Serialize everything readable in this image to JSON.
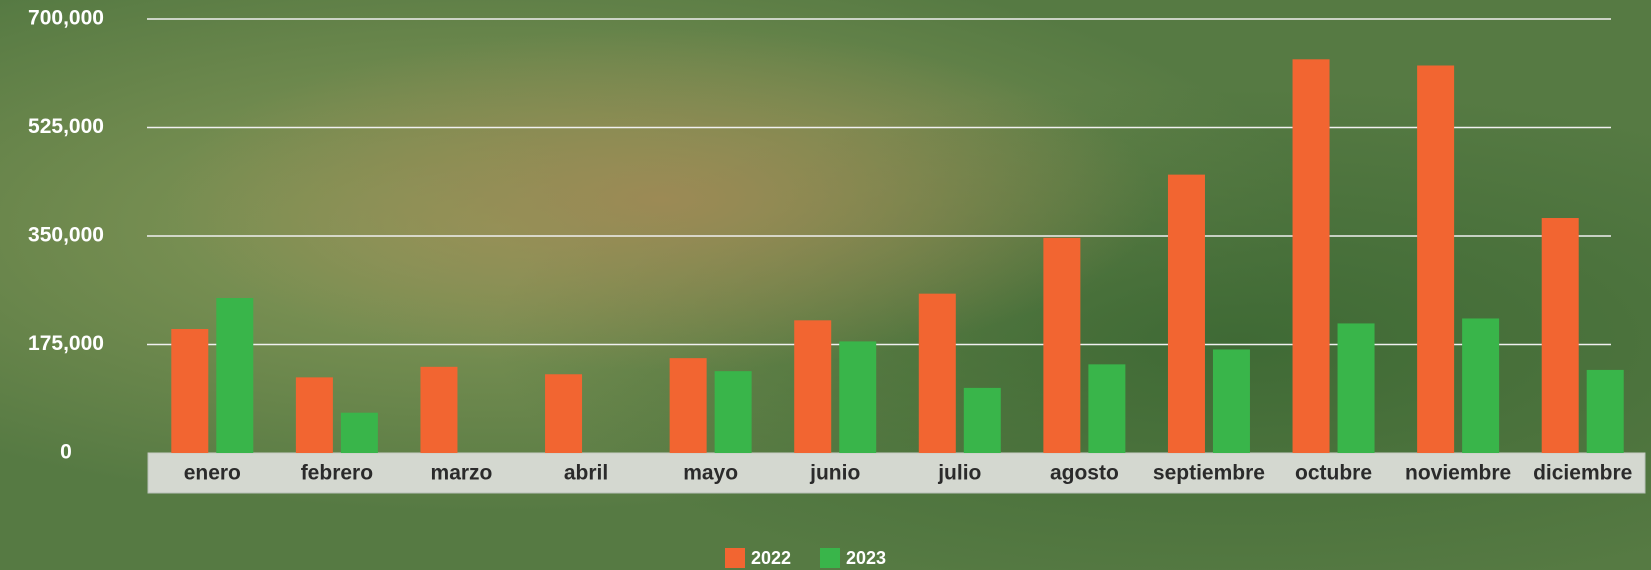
{
  "chart_data": {
    "type": "bar",
    "categories": [
      "enero",
      "febrero",
      "marzo",
      "abril",
      "mayo",
      "junio",
      "julio",
      "agosto",
      "septiembre",
      "octubre",
      "noviembre",
      "diciembre"
    ],
    "series": [
      {
        "name": "2022",
        "color": "#f26531",
        "values": [
          200000,
          122000,
          139000,
          127000,
          153000,
          214000,
          257000,
          347000,
          449000,
          635000,
          625000,
          379000
        ]
      },
      {
        "name": "2023",
        "color": "#39b54a",
        "values": [
          250000,
          65000,
          null,
          null,
          132000,
          180000,
          105000,
          143000,
          167000,
          209000,
          217000,
          134000
        ]
      }
    ],
    "ylim": [
      0,
      700000
    ],
    "yticks": [
      0,
      {
        "value": 175000,
        "label": "175,000"
      },
      {
        "value": 350000,
        "label": "350,000"
      },
      {
        "value": 525000,
        "label": "525,000"
      },
      {
        "value": 700000,
        "label": "700,000"
      }
    ],
    "grid": true,
    "legend": "bottom"
  }
}
